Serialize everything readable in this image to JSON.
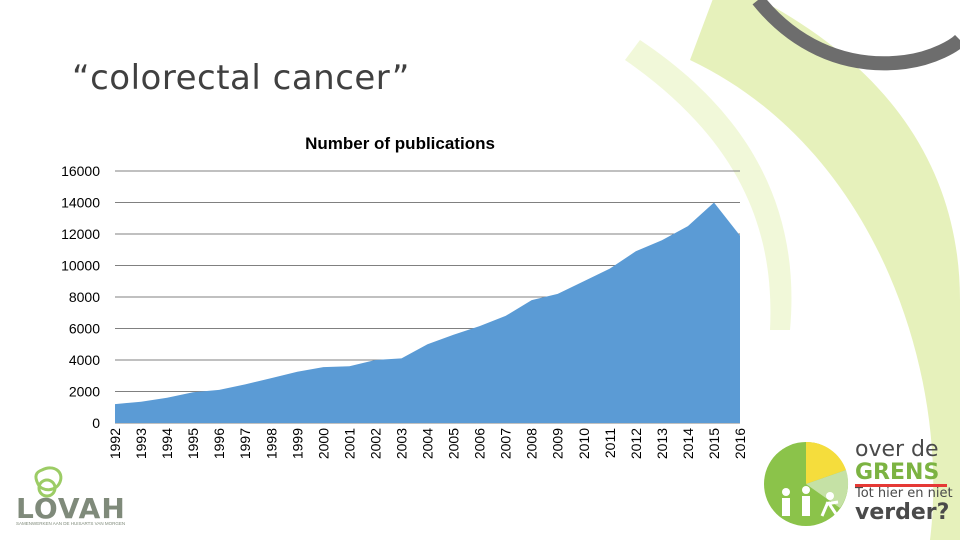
{
  "slide": {
    "title": "“colorectal cancer”"
  },
  "colors": {
    "area": "#5b9bd5",
    "grid": "#808080",
    "arc_gray": "#6d6d6d",
    "arc_green": "#d9ec9a"
  },
  "chart_data": {
    "type": "area",
    "title": "Number of publications",
    "xlabel": "",
    "ylabel": "",
    "ylim": [
      0,
      16000
    ],
    "yticks": [
      0,
      2000,
      4000,
      6000,
      8000,
      10000,
      12000,
      14000,
      16000
    ],
    "x": [
      "1992",
      "1993",
      "1994",
      "1995",
      "1996",
      "1997",
      "1998",
      "1999",
      "2000",
      "2001",
      "2002",
      "2003",
      "2004",
      "2005",
      "2006",
      "2007",
      "2008",
      "2009",
      "2010",
      "2011",
      "2012",
      "2013",
      "2014",
      "2015",
      "2016"
    ],
    "values": [
      1200,
      1350,
      1600,
      1950,
      2100,
      2450,
      2850,
      3250,
      3550,
      3600,
      4000,
      4100,
      5000,
      5600,
      6150,
      6800,
      7800,
      8200,
      9000,
      9800,
      10900,
      11600,
      12500,
      14000,
      11900
    ],
    "grid": true,
    "legend": "none"
  },
  "logos": {
    "lovah": {
      "name": "LOVAH",
      "tagline": "SAMENWERKEN AAN DE HUISARTS VAN MORGEN"
    },
    "grens": {
      "line1": "over de",
      "line2": "GRENS",
      "line3": "Tot hier en niet",
      "line4": "verder?"
    }
  }
}
